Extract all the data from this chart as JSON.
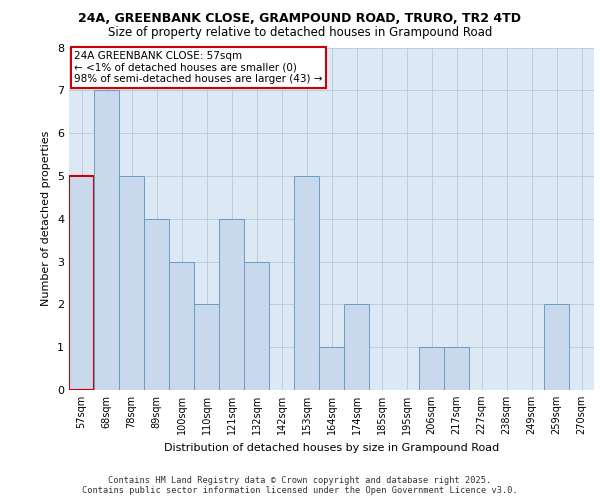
{
  "title1": "24A, GREENBANK CLOSE, GRAMPOUND ROAD, TRURO, TR2 4TD",
  "title2": "Size of property relative to detached houses in Grampound Road",
  "xlabel": "Distribution of detached houses by size in Grampound Road",
  "ylabel": "Number of detached properties",
  "categories": [
    "57sqm",
    "68sqm",
    "78sqm",
    "89sqm",
    "100sqm",
    "110sqm",
    "121sqm",
    "132sqm",
    "142sqm",
    "153sqm",
    "164sqm",
    "174sqm",
    "185sqm",
    "195sqm",
    "206sqm",
    "217sqm",
    "227sqm",
    "238sqm",
    "249sqm",
    "259sqm",
    "270sqm"
  ],
  "values": [
    5,
    7,
    5,
    4,
    3,
    2,
    4,
    3,
    0,
    5,
    1,
    2,
    0,
    0,
    1,
    1,
    0,
    0,
    0,
    2,
    0
  ],
  "bar_color": "#c8d9ee",
  "bar_edge_color": "#6a9cc0",
  "highlight_index": 0,
  "highlight_edge_color": "#cc0000",
  "annotation_title": "24A GREENBANK CLOSE: 57sqm",
  "annotation_line1": "← <1% of detached houses are smaller (0)",
  "annotation_line2": "98% of semi-detached houses are larger (43) →",
  "ylim": [
    0,
    8
  ],
  "yticks": [
    0,
    1,
    2,
    3,
    4,
    5,
    6,
    7,
    8
  ],
  "grid_color": "#b8c8dc",
  "background_color": "#dce8f4",
  "footer1": "Contains HM Land Registry data © Crown copyright and database right 2025.",
  "footer2": "Contains public sector information licensed under the Open Government Licence v3.0."
}
